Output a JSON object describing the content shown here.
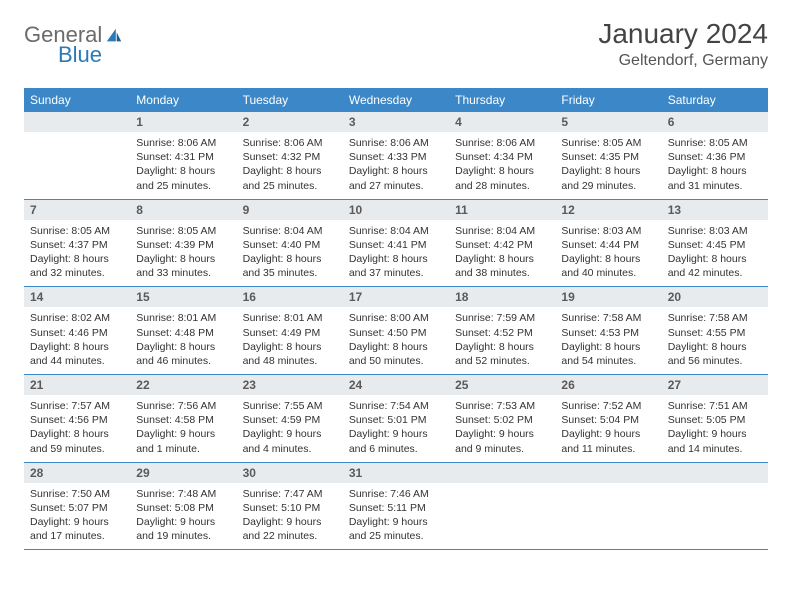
{
  "logo": {
    "word1": "General",
    "word2": "Blue"
  },
  "title": "January 2024",
  "location": "Geltendorf, Germany",
  "colors": {
    "header_bg": "#3b87c8",
    "header_fg": "#ffffff",
    "daynum_bg": "#e8ebee",
    "row_border": "#3b87c8",
    "logo_gray": "#6b6b6b",
    "logo_blue": "#2a7ab8"
  },
  "daysOfWeek": [
    "Sunday",
    "Monday",
    "Tuesday",
    "Wednesday",
    "Thursday",
    "Friday",
    "Saturday"
  ],
  "weeks": [
    [
      {
        "n": "",
        "sunrise": "",
        "sunset": "",
        "daylight": ""
      },
      {
        "n": "1",
        "sunrise": "Sunrise: 8:06 AM",
        "sunset": "Sunset: 4:31 PM",
        "daylight": "Daylight: 8 hours and 25 minutes."
      },
      {
        "n": "2",
        "sunrise": "Sunrise: 8:06 AM",
        "sunset": "Sunset: 4:32 PM",
        "daylight": "Daylight: 8 hours and 25 minutes."
      },
      {
        "n": "3",
        "sunrise": "Sunrise: 8:06 AM",
        "sunset": "Sunset: 4:33 PM",
        "daylight": "Daylight: 8 hours and 27 minutes."
      },
      {
        "n": "4",
        "sunrise": "Sunrise: 8:06 AM",
        "sunset": "Sunset: 4:34 PM",
        "daylight": "Daylight: 8 hours and 28 minutes."
      },
      {
        "n": "5",
        "sunrise": "Sunrise: 8:05 AM",
        "sunset": "Sunset: 4:35 PM",
        "daylight": "Daylight: 8 hours and 29 minutes."
      },
      {
        "n": "6",
        "sunrise": "Sunrise: 8:05 AM",
        "sunset": "Sunset: 4:36 PM",
        "daylight": "Daylight: 8 hours and 31 minutes."
      }
    ],
    [
      {
        "n": "7",
        "sunrise": "Sunrise: 8:05 AM",
        "sunset": "Sunset: 4:37 PM",
        "daylight": "Daylight: 8 hours and 32 minutes."
      },
      {
        "n": "8",
        "sunrise": "Sunrise: 8:05 AM",
        "sunset": "Sunset: 4:39 PM",
        "daylight": "Daylight: 8 hours and 33 minutes."
      },
      {
        "n": "9",
        "sunrise": "Sunrise: 8:04 AM",
        "sunset": "Sunset: 4:40 PM",
        "daylight": "Daylight: 8 hours and 35 minutes."
      },
      {
        "n": "10",
        "sunrise": "Sunrise: 8:04 AM",
        "sunset": "Sunset: 4:41 PM",
        "daylight": "Daylight: 8 hours and 37 minutes."
      },
      {
        "n": "11",
        "sunrise": "Sunrise: 8:04 AM",
        "sunset": "Sunset: 4:42 PM",
        "daylight": "Daylight: 8 hours and 38 minutes."
      },
      {
        "n": "12",
        "sunrise": "Sunrise: 8:03 AM",
        "sunset": "Sunset: 4:44 PM",
        "daylight": "Daylight: 8 hours and 40 minutes."
      },
      {
        "n": "13",
        "sunrise": "Sunrise: 8:03 AM",
        "sunset": "Sunset: 4:45 PM",
        "daylight": "Daylight: 8 hours and 42 minutes."
      }
    ],
    [
      {
        "n": "14",
        "sunrise": "Sunrise: 8:02 AM",
        "sunset": "Sunset: 4:46 PM",
        "daylight": "Daylight: 8 hours and 44 minutes."
      },
      {
        "n": "15",
        "sunrise": "Sunrise: 8:01 AM",
        "sunset": "Sunset: 4:48 PM",
        "daylight": "Daylight: 8 hours and 46 minutes."
      },
      {
        "n": "16",
        "sunrise": "Sunrise: 8:01 AM",
        "sunset": "Sunset: 4:49 PM",
        "daylight": "Daylight: 8 hours and 48 minutes."
      },
      {
        "n": "17",
        "sunrise": "Sunrise: 8:00 AM",
        "sunset": "Sunset: 4:50 PM",
        "daylight": "Daylight: 8 hours and 50 minutes."
      },
      {
        "n": "18",
        "sunrise": "Sunrise: 7:59 AM",
        "sunset": "Sunset: 4:52 PM",
        "daylight": "Daylight: 8 hours and 52 minutes."
      },
      {
        "n": "19",
        "sunrise": "Sunrise: 7:58 AM",
        "sunset": "Sunset: 4:53 PM",
        "daylight": "Daylight: 8 hours and 54 minutes."
      },
      {
        "n": "20",
        "sunrise": "Sunrise: 7:58 AM",
        "sunset": "Sunset: 4:55 PM",
        "daylight": "Daylight: 8 hours and 56 minutes."
      }
    ],
    [
      {
        "n": "21",
        "sunrise": "Sunrise: 7:57 AM",
        "sunset": "Sunset: 4:56 PM",
        "daylight": "Daylight: 8 hours and 59 minutes."
      },
      {
        "n": "22",
        "sunrise": "Sunrise: 7:56 AM",
        "sunset": "Sunset: 4:58 PM",
        "daylight": "Daylight: 9 hours and 1 minute."
      },
      {
        "n": "23",
        "sunrise": "Sunrise: 7:55 AM",
        "sunset": "Sunset: 4:59 PM",
        "daylight": "Daylight: 9 hours and 4 minutes."
      },
      {
        "n": "24",
        "sunrise": "Sunrise: 7:54 AM",
        "sunset": "Sunset: 5:01 PM",
        "daylight": "Daylight: 9 hours and 6 minutes."
      },
      {
        "n": "25",
        "sunrise": "Sunrise: 7:53 AM",
        "sunset": "Sunset: 5:02 PM",
        "daylight": "Daylight: 9 hours and 9 minutes."
      },
      {
        "n": "26",
        "sunrise": "Sunrise: 7:52 AM",
        "sunset": "Sunset: 5:04 PM",
        "daylight": "Daylight: 9 hours and 11 minutes."
      },
      {
        "n": "27",
        "sunrise": "Sunrise: 7:51 AM",
        "sunset": "Sunset: 5:05 PM",
        "daylight": "Daylight: 9 hours and 14 minutes."
      }
    ],
    [
      {
        "n": "28",
        "sunrise": "Sunrise: 7:50 AM",
        "sunset": "Sunset: 5:07 PM",
        "daylight": "Daylight: 9 hours and 17 minutes."
      },
      {
        "n": "29",
        "sunrise": "Sunrise: 7:48 AM",
        "sunset": "Sunset: 5:08 PM",
        "daylight": "Daylight: 9 hours and 19 minutes."
      },
      {
        "n": "30",
        "sunrise": "Sunrise: 7:47 AM",
        "sunset": "Sunset: 5:10 PM",
        "daylight": "Daylight: 9 hours and 22 minutes."
      },
      {
        "n": "31",
        "sunrise": "Sunrise: 7:46 AM",
        "sunset": "Sunset: 5:11 PM",
        "daylight": "Daylight: 9 hours and 25 minutes."
      },
      {
        "n": "",
        "sunrise": "",
        "sunset": "",
        "daylight": ""
      },
      {
        "n": "",
        "sunrise": "",
        "sunset": "",
        "daylight": ""
      },
      {
        "n": "",
        "sunrise": "",
        "sunset": "",
        "daylight": ""
      }
    ]
  ]
}
